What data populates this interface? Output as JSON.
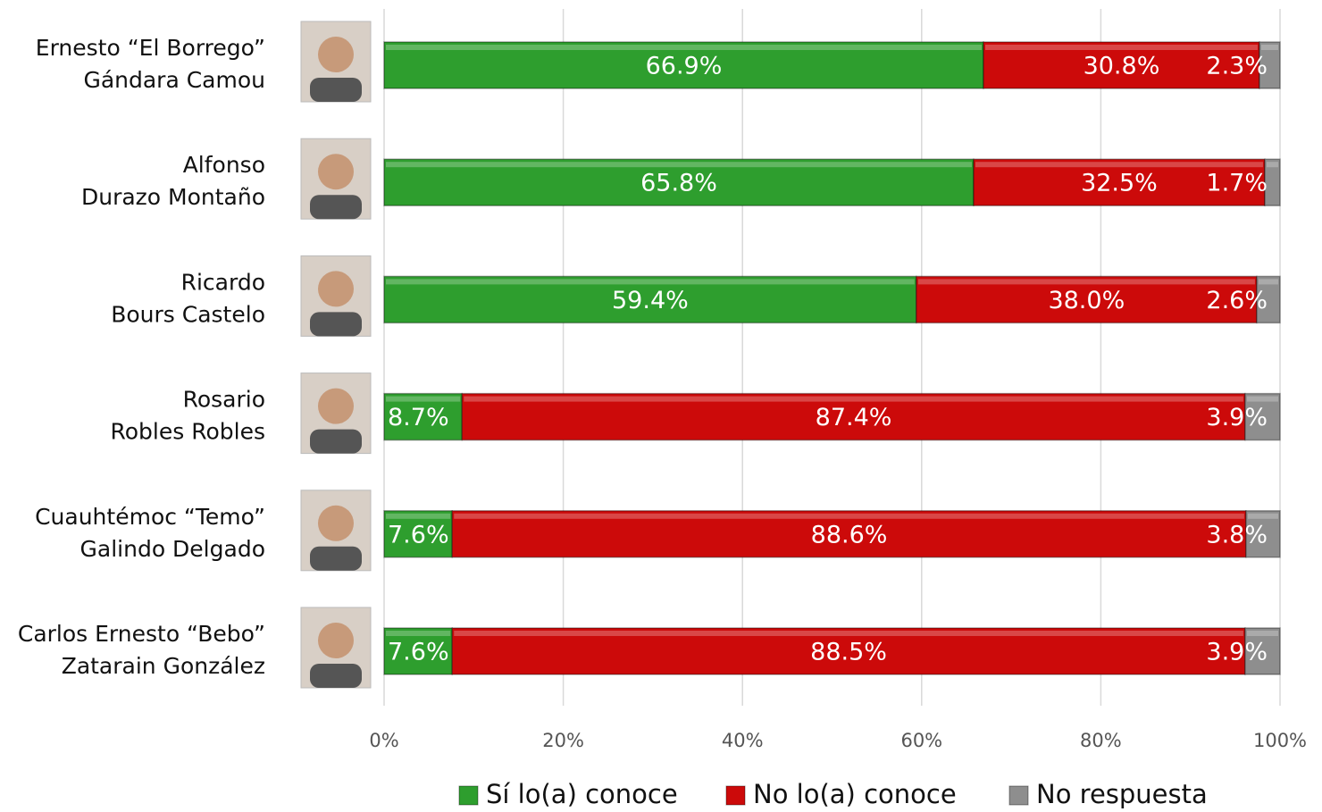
{
  "chart_data": {
    "type": "stacked-bar-horizontal",
    "categories": [
      [
        "Ernesto “El Borrego”",
        "Gándara Camou"
      ],
      [
        "Alfonso",
        "Durazo Montaño"
      ],
      [
        "Ricardo",
        "Bours Castelo"
      ],
      [
        "Rosario",
        "Robles Robles"
      ],
      [
        "Cuauhtémoc “Temo”",
        "Galindo Delgado"
      ],
      [
        "Carlos Ernesto “Bebo”",
        "Zatarain González"
      ]
    ],
    "series": [
      {
        "name": "Sí lo(a) conoce",
        "color": "#2e9e2e",
        "values": [
          66.9,
          65.8,
          59.4,
          8.7,
          7.6,
          7.6
        ],
        "value_labels": [
          "66.9%",
          "65.8%",
          "59.4%",
          "8.7%",
          "7.6%",
          "7.6%"
        ]
      },
      {
        "name": "No lo(a) conoce",
        "color": "#cc0a0a",
        "values": [
          30.8,
          32.5,
          38.0,
          87.4,
          88.6,
          88.5
        ],
        "value_labels": [
          "30.8%",
          "32.5%",
          "38.0%",
          "87.4%",
          "88.6%",
          "88.5%"
        ]
      },
      {
        "name": "No respuesta",
        "color": "#8e8e8e",
        "values": [
          2.3,
          1.7,
          2.6,
          3.9,
          3.8,
          3.9
        ],
        "value_labels": [
          "2.3%",
          "1.7%",
          "2.6%",
          "3.9%",
          "3.8%",
          "3.9%"
        ]
      }
    ],
    "xlim": [
      0,
      100
    ],
    "xticks": [
      {
        "value": 0,
        "label": "0%"
      },
      {
        "value": 20,
        "label": "20%"
      },
      {
        "value": 40,
        "label": "40%"
      },
      {
        "value": 60,
        "label": "60%"
      },
      {
        "value": 80,
        "label": "80%"
      },
      {
        "value": 100,
        "label": "100%"
      }
    ],
    "grid": true,
    "legend": "bottom"
  }
}
